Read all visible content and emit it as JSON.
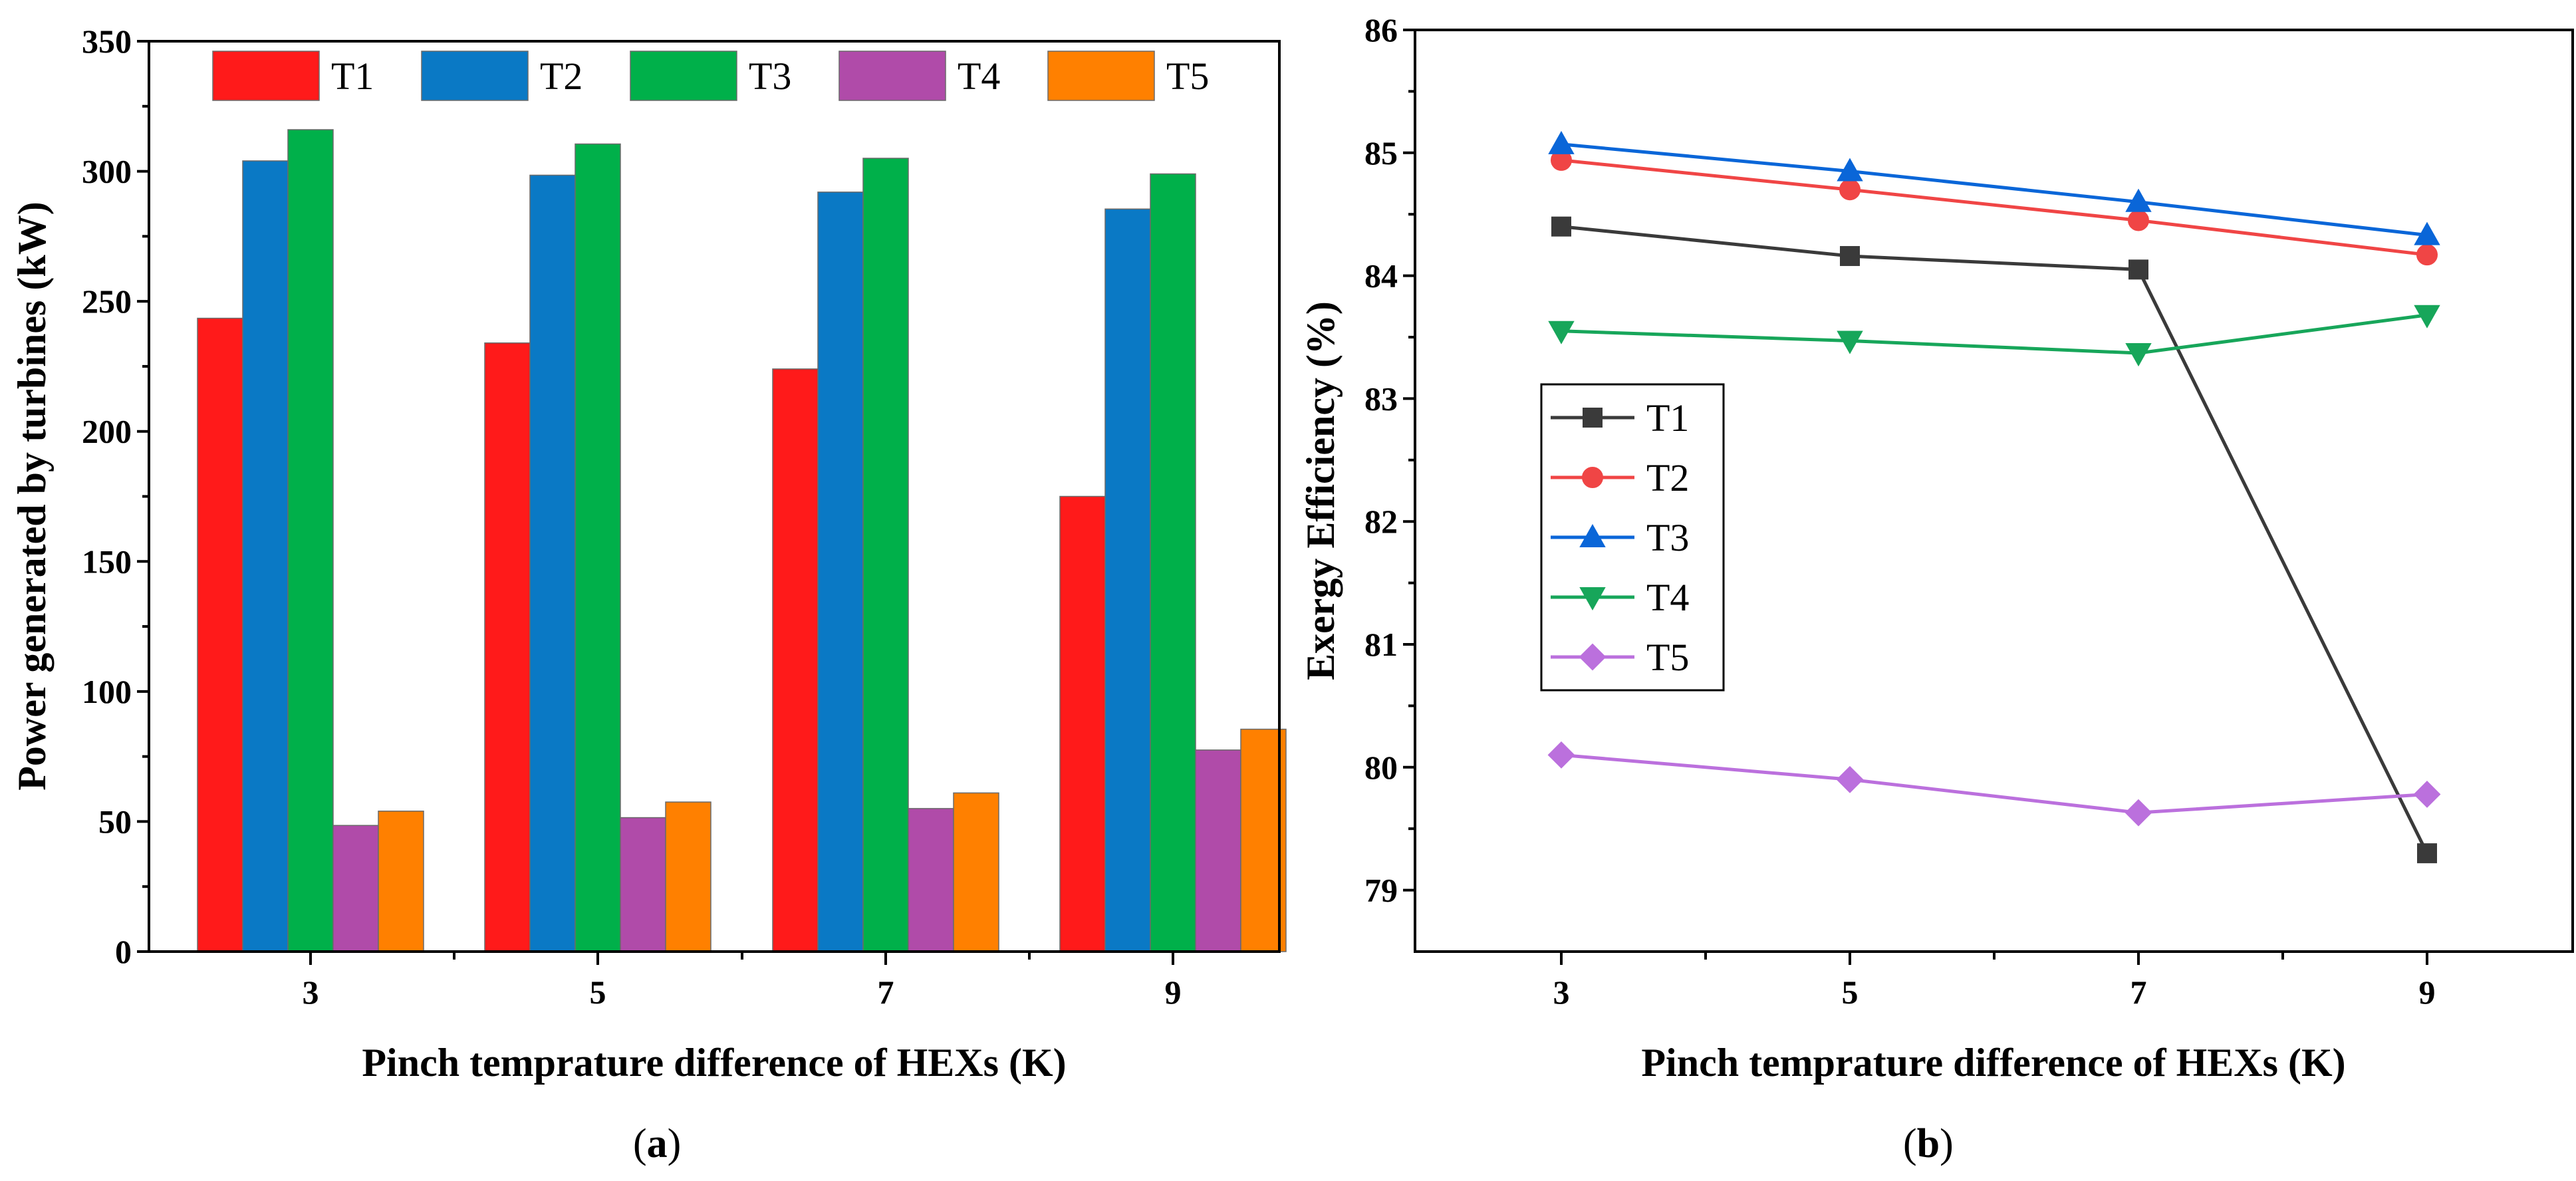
{
  "chart_data": [
    {
      "type": "bar",
      "panel_label": "a",
      "title": "",
      "xlabel": "Pinch temprature difference of HEXs (K)",
      "ylabel": "Power generated by turbines (kW)",
      "categories": [
        "3",
        "5",
        "7",
        "9"
      ],
      "ylim": [
        0,
        350
      ],
      "yticks": [
        "0",
        "50",
        "100",
        "150",
        "200",
        "250",
        "300",
        "350"
      ],
      "legend_position": "top",
      "series": [
        {
          "name": "T1",
          "color": "#ff1a1a",
          "values": [
            243.5,
            234,
            224,
            175
          ]
        },
        {
          "name": "T2",
          "color": "#0a79c5",
          "values": [
            304,
            298.5,
            292,
            285.5
          ]
        },
        {
          "name": "T3",
          "color": "#00b04a",
          "values": [
            316,
            310.5,
            305,
            299
          ]
        },
        {
          "name": "T4",
          "color": "#b04ba9",
          "values": [
            48.5,
            51.5,
            55,
            77.5
          ]
        },
        {
          "name": "T5",
          "color": "#ff8000",
          "values": [
            54,
            57.5,
            61,
            85.5
          ]
        }
      ]
    },
    {
      "type": "line",
      "panel_label": "b",
      "title": "",
      "xlabel": "Pinch temprature difference of HEXs (K)",
      "ylabel": "Exergy Efficiency (%)",
      "x": [
        "3",
        "5",
        "7",
        "9"
      ],
      "ylim": [
        78.5,
        86
      ],
      "yticks": [
        "79",
        "80",
        "81",
        "82",
        "83",
        "84",
        "85",
        "86"
      ],
      "legend_position": "middle-left",
      "series": [
        {
          "name": "T1",
          "color": "#3a3a3a",
          "marker": "square",
          "values": [
            84.4,
            84.16,
            84.05,
            79.3
          ]
        },
        {
          "name": "T2",
          "color": "#f04545",
          "marker": "circle",
          "values": [
            84.94,
            84.7,
            84.45,
            84.17
          ]
        },
        {
          "name": "T3",
          "color": "#0a66d8",
          "marker": "triangle-up",
          "values": [
            85.07,
            84.85,
            84.6,
            84.33
          ]
        },
        {
          "name": "T4",
          "color": "#17a65a",
          "marker": "triangle-down",
          "values": [
            83.55,
            83.47,
            83.37,
            83.68
          ]
        },
        {
          "name": "T5",
          "color": "#bb70dd",
          "marker": "diamond",
          "values": [
            80.1,
            79.9,
            79.63,
            79.78
          ]
        }
      ]
    }
  ]
}
